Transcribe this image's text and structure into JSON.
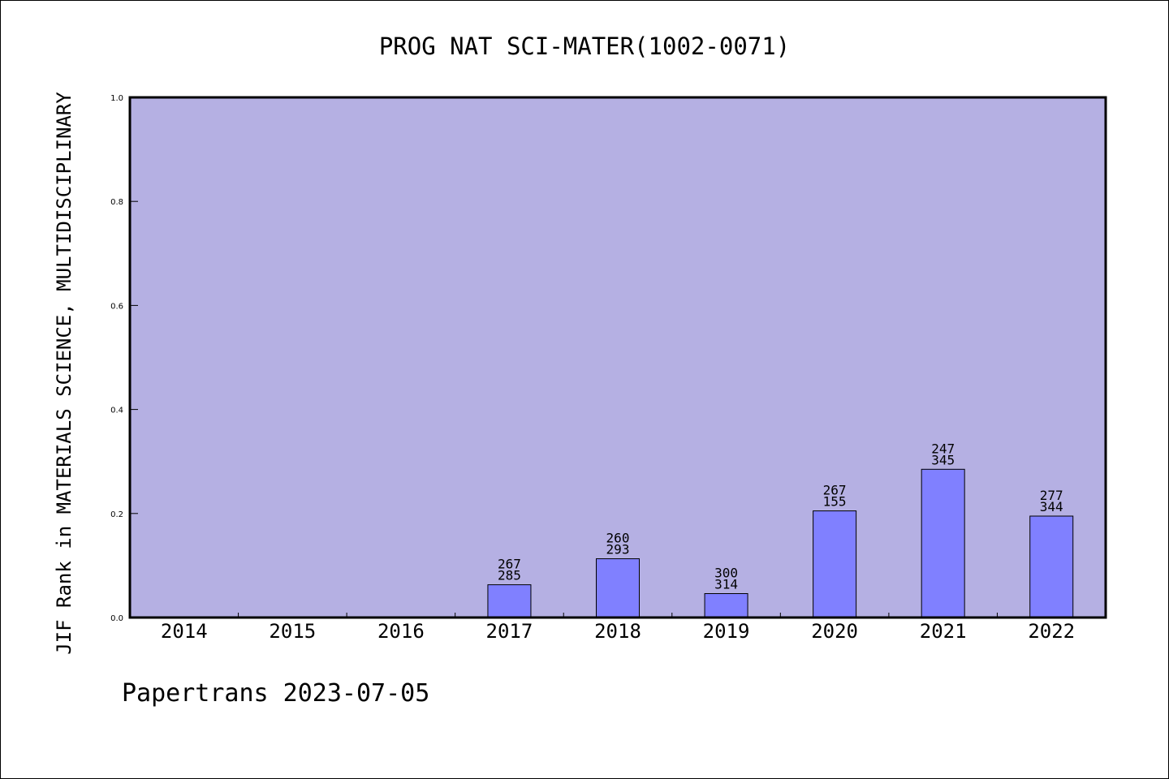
{
  "chart_data": {
    "type": "bar",
    "title": "PROG NAT SCI-MATER(1002-0071)",
    "xlabel": "",
    "ylabel": "JIF Rank in MATERIALS SCIENCE, MULTIDISCIPLINARY",
    "ylim": [
      0,
      1.0
    ],
    "yticks": [
      "0.0",
      "0.2",
      "0.4",
      "0.6",
      "0.8",
      "1.0"
    ],
    "categories": [
      "2014",
      "2015",
      "2016",
      "2017",
      "2018",
      "2019",
      "2020",
      "2021",
      "2022"
    ],
    "values": [
      null,
      null,
      null,
      0.063,
      0.113,
      0.046,
      0.205,
      0.285,
      0.195
    ],
    "rank_labels": [
      null,
      null,
      null,
      [
        "267",
        "285"
      ],
      [
        "260",
        "293"
      ],
      [
        "300",
        "314"
      ],
      [
        "267",
        "155"
      ],
      [
        "247",
        "345"
      ],
      [
        "277",
        "344"
      ]
    ],
    "grid": false,
    "colors": {
      "plot_background": "#b5b0e3",
      "bar_fill": "#8080ff",
      "bar_stroke": "#000000",
      "axis": "#000000"
    }
  },
  "footer": {
    "text": "Papertrans 2023-07-05"
  }
}
